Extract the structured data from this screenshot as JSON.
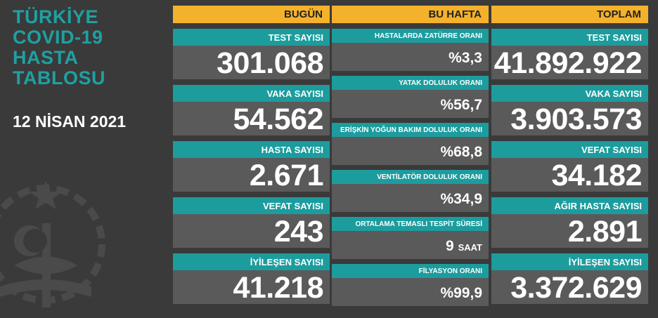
{
  "title": [
    "TÜRKİYE",
    "COVID-19",
    "HASTA",
    "TABLOSU"
  ],
  "date": "12 NİSAN 2021",
  "bugun": {
    "header": "BUGÜN",
    "items": [
      {
        "label": "TEST SAYISI",
        "value": "301.068"
      },
      {
        "label": "VAKA SAYISI",
        "value": "54.562"
      },
      {
        "label": "HASTA SAYISI",
        "value": "2.671"
      },
      {
        "label": "VEFAT SAYISI",
        "value": "243"
      },
      {
        "label": "İYİLEŞEN SAYISI",
        "value": "41.218"
      }
    ]
  },
  "bu_hafta": {
    "header": "BU HAFTA",
    "items": [
      {
        "label": "HASTALARDA ZATÜRRE ORANI",
        "value": "%3,3"
      },
      {
        "label": "YATAK DOLULUK ORANI",
        "value": "%56,7"
      },
      {
        "label": "ERİŞKİN YOĞUN BAKIM DOLULUK ORANI",
        "value": "%68,8"
      },
      {
        "label": "VENTİLATÖR DOLULUK ORANI",
        "value": "%34,9"
      },
      {
        "label": "ORTALAMA TEMASLI TESPİT SÜRESİ",
        "value": "9",
        "unit": "SAAT"
      },
      {
        "label": "FİLYASYON ORANI",
        "value": "%99,9"
      }
    ]
  },
  "toplam": {
    "header": "TOPLAM",
    "items": [
      {
        "label": "TEST SAYISI",
        "value": "41.892.922"
      },
      {
        "label": "VAKA SAYISI",
        "value": "3.903.573"
      },
      {
        "label": "VEFAT SAYISI",
        "value": "34.182"
      },
      {
        "label": "AĞIR HASTA SAYISI",
        "value": "2.891"
      },
      {
        "label": "İYİLEŞEN SAYISI",
        "value": "3.372.629"
      }
    ]
  },
  "colors": {
    "background": "#3a3a3a",
    "header": "#f4b12b",
    "teal": "#1d9c9e",
    "value_box": "#5a5a5a"
  }
}
